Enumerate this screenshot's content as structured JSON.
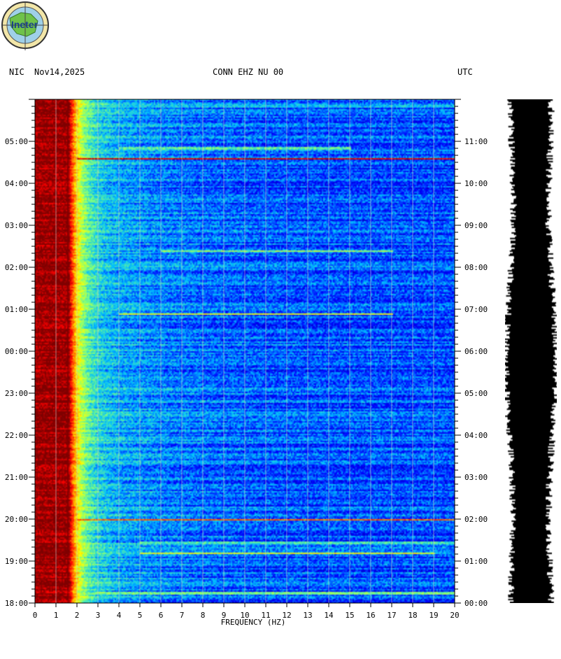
{
  "header": {
    "network": "NIC",
    "date": "Nov14,2025",
    "station": "CONN EHZ NU 00",
    "timezone": "UTC"
  },
  "logo": {
    "text": "Ineter"
  },
  "chart_data": {
    "type": "heatmap",
    "title": "CONN EHZ NU 00",
    "xlabel": "FREQUENCY (HZ)",
    "xlim": [
      0,
      20
    ],
    "x_ticks": [
      "0",
      "1",
      "2",
      "3",
      "4",
      "5",
      "6",
      "7",
      "8",
      "9",
      "10",
      "11",
      "12",
      "13",
      "14",
      "15",
      "16",
      "17",
      "18",
      "19",
      "20"
    ],
    "left_time_labels": [
      "18:00",
      "19:00",
      "20:00",
      "21:00",
      "22:00",
      "23:00",
      "00:00",
      "01:00",
      "02:00",
      "03:00",
      "04:00",
      "05:00"
    ],
    "right_time_labels": [
      "00:00",
      "01:00",
      "02:00",
      "03:00",
      "04:00",
      "05:00",
      "06:00",
      "07:00",
      "08:00",
      "09:00",
      "10:00",
      "11:00"
    ],
    "time_span_hours": 12,
    "colormap": [
      "#00007f",
      "#0000ff",
      "#00bfff",
      "#7fff7f",
      "#ffff00",
      "#ff7f00",
      "#ff0000",
      "#7f0000"
    ],
    "horizontal_bands": [
      {
        "time_offset_h": 11.85,
        "x_range": [
          2,
          20
        ],
        "intensity": 0.55
      },
      {
        "time_offset_h": 10.85,
        "x_range": [
          4,
          15
        ],
        "intensity": 0.75
      },
      {
        "time_offset_h": 10.6,
        "x_range": [
          2,
          20
        ],
        "intensity": 0.9
      },
      {
        "time_offset_h": 8.4,
        "x_range": [
          6,
          17
        ],
        "intensity": 0.45
      },
      {
        "time_offset_h": 6.9,
        "x_range": [
          4,
          17
        ],
        "intensity": 0.55
      },
      {
        "time_offset_h": 2.0,
        "x_range": [
          2,
          20
        ],
        "intensity": 0.75
      },
      {
        "time_offset_h": 1.45,
        "x_range": [
          5,
          20
        ],
        "intensity": 0.7
      },
      {
        "time_offset_h": 1.2,
        "x_range": [
          5,
          19
        ],
        "intensity": 0.55
      },
      {
        "time_offset_h": 0.25,
        "x_range": [
          2,
          20
        ],
        "intensity": 0.8
      }
    ]
  }
}
